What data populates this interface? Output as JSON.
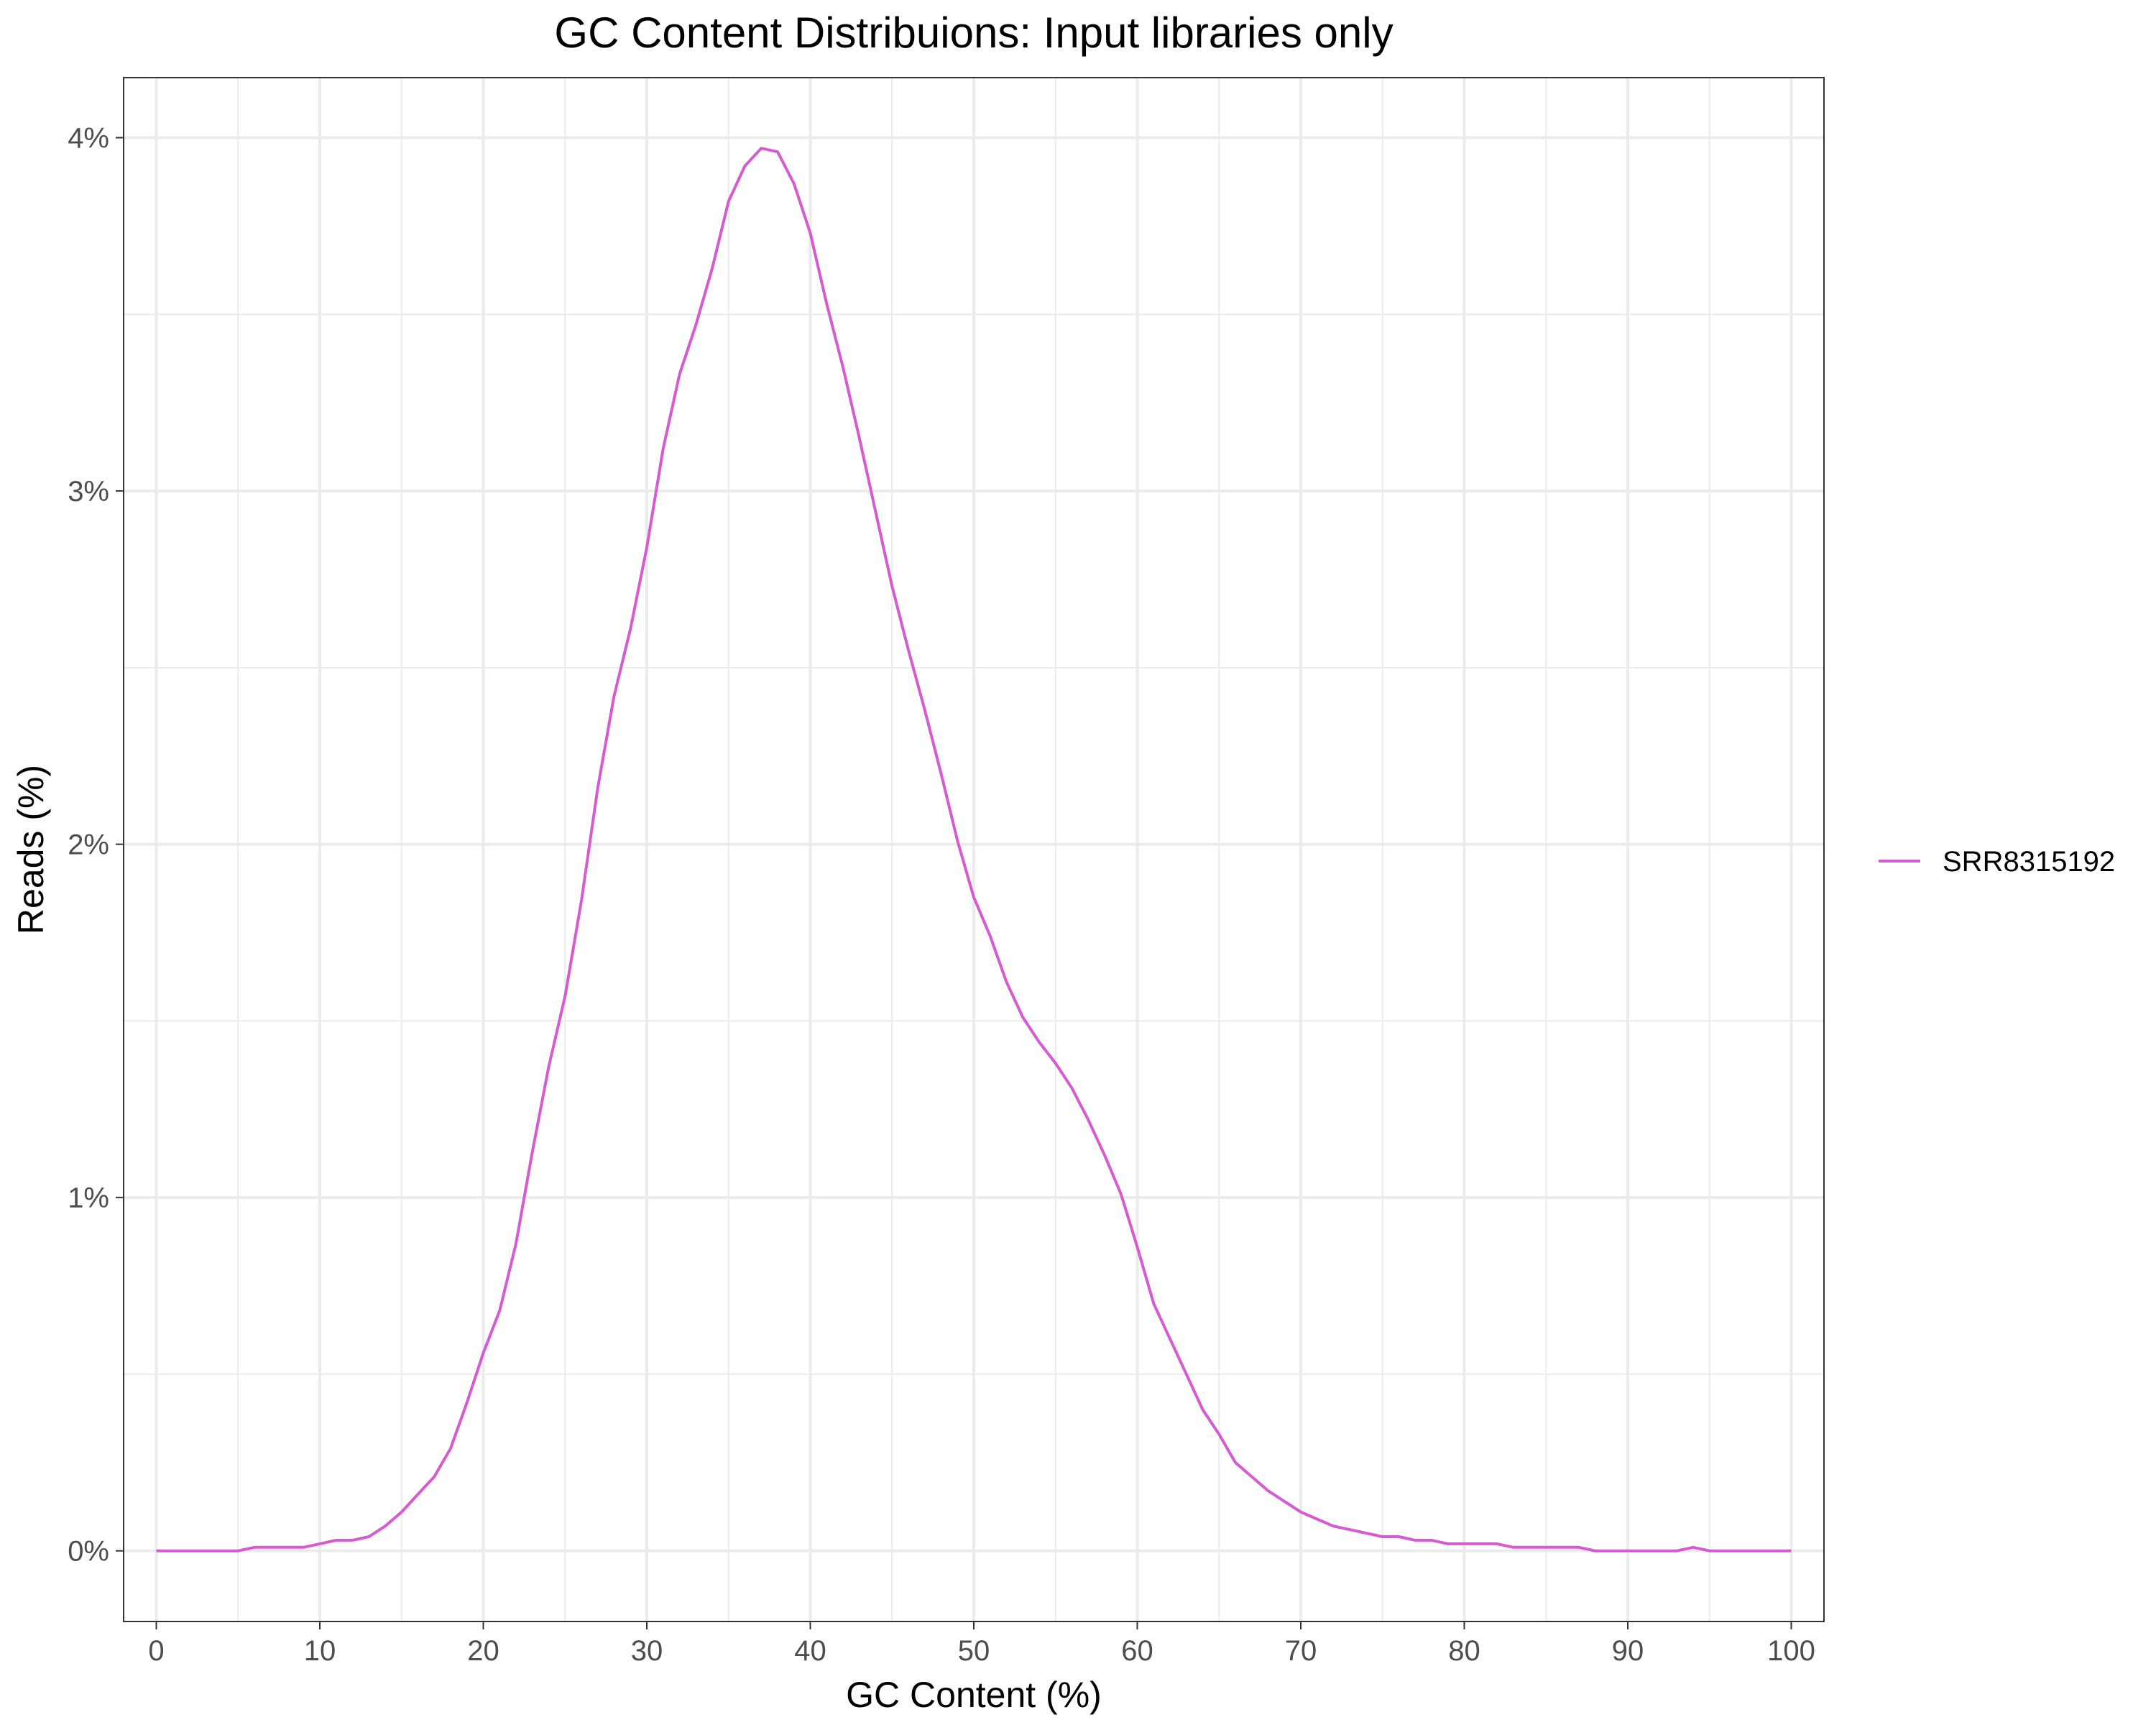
{
  "chart_data": {
    "type": "line",
    "title": "GC Content Distribuions: Input libraries only",
    "xlabel": "GC Content (%)",
    "ylabel": "Reads (%)",
    "xlim": [
      -2,
      102
    ],
    "ylim": [
      -0.2,
      4.17
    ],
    "x_ticks": [
      0,
      10,
      20,
      30,
      40,
      50,
      60,
      70,
      80,
      90,
      100
    ],
    "x_tick_labels": [
      "0",
      "10",
      "20",
      "30",
      "40",
      "50",
      "60",
      "70",
      "80",
      "90",
      "100"
    ],
    "y_ticks": [
      0,
      1,
      2,
      3,
      4
    ],
    "y_tick_labels": [
      "0%",
      "1%",
      "2%",
      "3%",
      "4%"
    ],
    "grid": true,
    "legend_position": "right",
    "series": [
      {
        "name": "SRR8315192",
        "color": "#d65bd0",
        "x": [
          0,
          1,
          2,
          3,
          4,
          5,
          6,
          7,
          8,
          9,
          10,
          11,
          12,
          13,
          14,
          15,
          16,
          17,
          18,
          19,
          20,
          21,
          22,
          23,
          24,
          25,
          26,
          27,
          28,
          29,
          30,
          31,
          32,
          33,
          34,
          35,
          36,
          37,
          38,
          39,
          40,
          41,
          42,
          43,
          44,
          45,
          46,
          47,
          48,
          49,
          50,
          51,
          52,
          53,
          54,
          55,
          56,
          57,
          58,
          59,
          60,
          61,
          62,
          63,
          64,
          65,
          66,
          67,
          68,
          69,
          70,
          71,
          72,
          73,
          74,
          75,
          76,
          77,
          78,
          79,
          80,
          81,
          82,
          83,
          84,
          85,
          86,
          87,
          88,
          89,
          90,
          91,
          92,
          93,
          94,
          95,
          96,
          97,
          98,
          99,
          100
        ],
        "values": [
          0,
          0,
          0,
          0,
          0,
          0,
          0.01,
          0.01,
          0.01,
          0.01,
          0.02,
          0.03,
          0.03,
          0.04,
          0.07,
          0.11,
          0.16,
          0.21,
          0.29,
          0.42,
          0.56,
          0.68,
          0.87,
          1.13,
          1.37,
          1.57,
          1.84,
          2.16,
          2.42,
          2.61,
          2.84,
          3.12,
          3.33,
          3.47,
          3.63,
          3.82,
          3.92,
          3.97,
          3.96,
          3.87,
          3.73,
          3.53,
          3.35,
          3.15,
          2.94,
          2.73,
          2.55,
          2.38,
          2.2,
          2.01,
          1.85,
          1.74,
          1.61,
          1.51,
          1.44,
          1.38,
          1.31,
          1.22,
          1.12,
          1.01,
          0.86,
          0.7,
          0.6,
          0.5,
          0.4,
          0.33,
          0.25,
          0.21,
          0.17,
          0.14,
          0.11,
          0.09,
          0.07,
          0.06,
          0.05,
          0.04,
          0.04,
          0.03,
          0.03,
          0.02,
          0.02,
          0.02,
          0.02,
          0.01,
          0.01,
          0.01,
          0.01,
          0.01,
          0,
          0,
          0,
          0,
          0,
          0,
          0.01,
          0,
          0,
          0,
          0,
          0,
          0
        ]
      }
    ]
  }
}
